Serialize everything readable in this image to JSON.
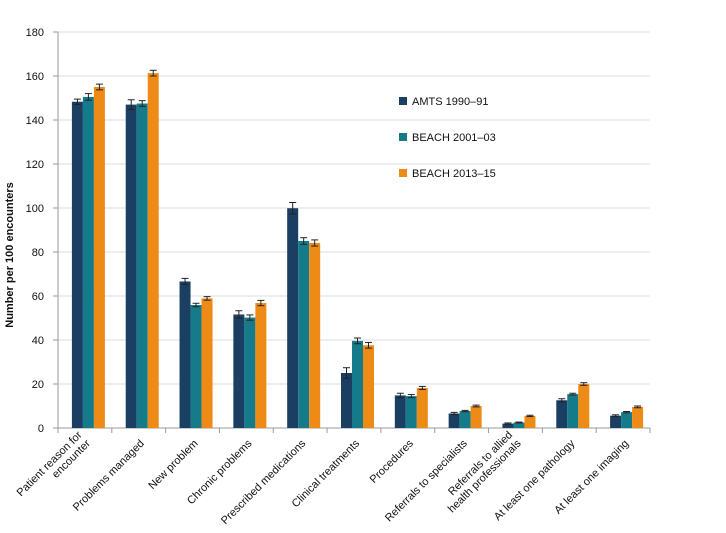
{
  "chart_data": {
    "type": "bar",
    "title": "",
    "xlabel": "",
    "ylabel": "Number per 100 encounters",
    "ylim": [
      0,
      180
    ],
    "yticks": [
      0,
      20,
      40,
      60,
      80,
      100,
      120,
      140,
      160,
      180
    ],
    "grid": true,
    "legend_position": "right",
    "categories": [
      "Patient reason for encounter",
      "Problems managed",
      "New problem",
      "Chronic problems",
      "Prescribed medications",
      "Clinical treatments",
      "Procedures",
      "Referrals to specialists",
      "Referrals to allied health professionals",
      "At least one pathology",
      "At least one imaging"
    ],
    "category_label_lines": [
      [
        "Patient reason for",
        "encounter"
      ],
      [
        "Problems managed"
      ],
      [
        "New problem"
      ],
      [
        "Chronic problems"
      ],
      [
        "Prescribed medications"
      ],
      [
        "Clinical treatments"
      ],
      [
        "Procedures"
      ],
      [
        "Referrals to specialists"
      ],
      [
        "Referrals to allied",
        "health professionals"
      ],
      [
        "At least one pathology"
      ],
      [
        "At least one imaging"
      ]
    ],
    "series": [
      {
        "name": "AMTS 1990–91",
        "color": "#1b3f63",
        "values": [
          148.3,
          147.0,
          66.6,
          51.6,
          99.9,
          25.0,
          14.8,
          6.6,
          2.0,
          12.6,
          5.6
        ],
        "error": [
          1.2,
          2.2,
          1.4,
          1.7,
          2.6,
          2.4,
          1.0,
          0.5,
          0.3,
          0.7,
          0.4
        ]
      },
      {
        "name": "BEACH 2001–03",
        "color": "#157b8a",
        "values": [
          150.5,
          147.5,
          55.9,
          50.2,
          85.0,
          39.6,
          14.5,
          7.7,
          2.5,
          15.4,
          7.2
        ],
        "error": [
          1.5,
          1.3,
          0.8,
          1.2,
          1.5,
          1.3,
          0.7,
          0.3,
          0.2,
          0.4,
          0.3
        ]
      },
      {
        "name": "BEACH 2013–15",
        "color": "#ee8a16",
        "values": [
          155.0,
          161.3,
          58.9,
          56.8,
          84.1,
          37.6,
          18.2,
          10.0,
          5.5,
          20.0,
          9.6
        ],
        "error": [
          1.3,
          1.3,
          0.8,
          1.2,
          1.4,
          1.3,
          0.7,
          0.4,
          0.3,
          0.6,
          0.4
        ]
      }
    ]
  }
}
